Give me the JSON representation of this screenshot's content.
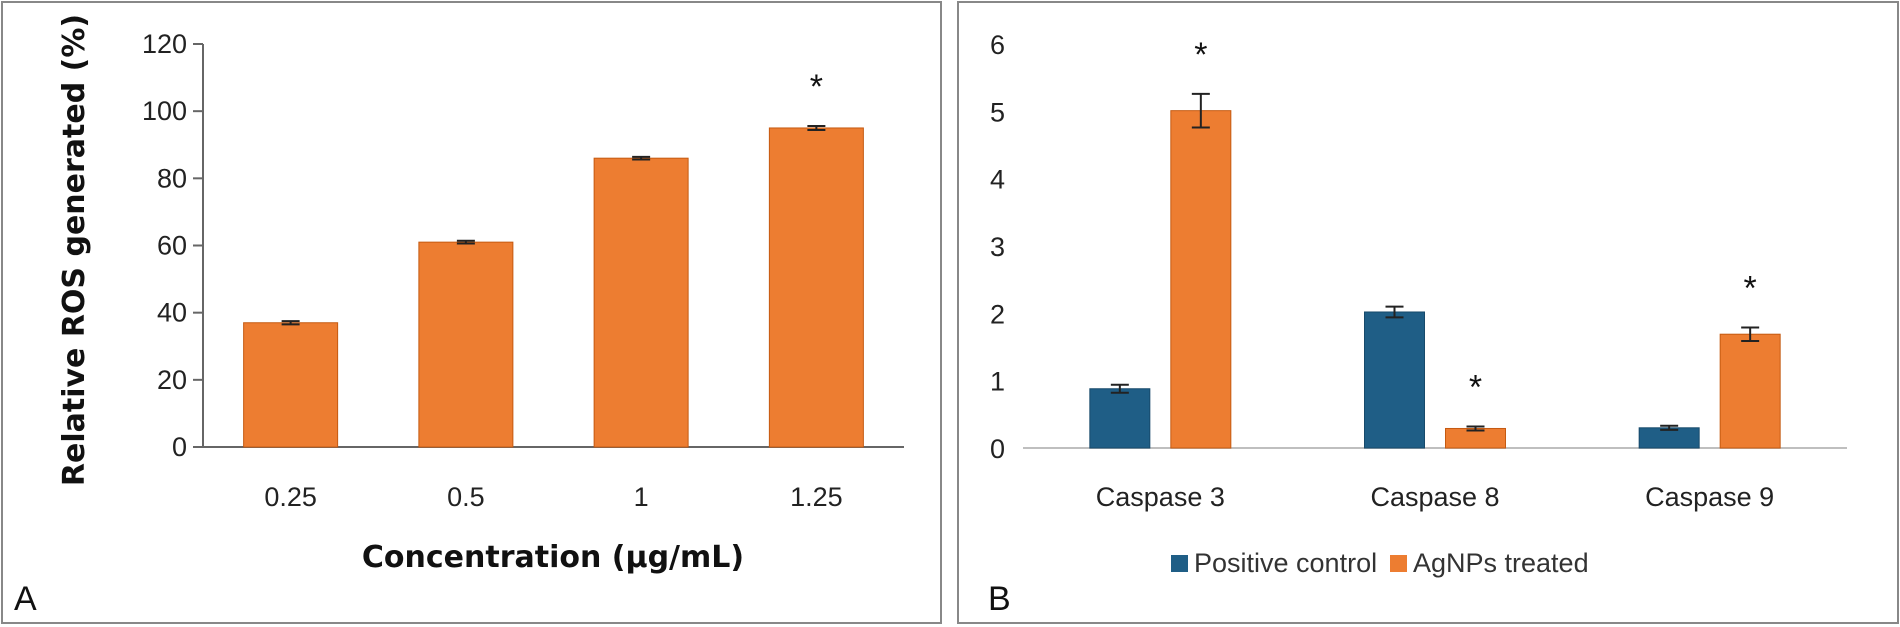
{
  "chart_data": [
    {
      "panel_label": "A",
      "type": "bar",
      "categories": [
        "0.25",
        "0.5",
        "1",
        "1.25"
      ],
      "values": [
        37,
        61,
        86,
        95
      ],
      "errors": [
        0.5,
        0.4,
        0.4,
        0.6
      ],
      "significance": [
        "",
        "",
        "",
        "*"
      ],
      "xlabel": "Concentration (µg/mL)",
      "ylabel": "Relative ROS generated (%)",
      "ylim": [
        0,
        120
      ],
      "yticks": [
        "0",
        "20",
        "40",
        "60",
        "80",
        "100",
        "120"
      ],
      "grid": false,
      "color": "#ED7D31"
    },
    {
      "panel_label": "B",
      "type": "bar",
      "categories": [
        "Caspase 3",
        "Caspase 8",
        "Caspase 9"
      ],
      "series": [
        {
          "name": "Positive control",
          "values": [
            0.88,
            2.02,
            0.3
          ],
          "errors": [
            0.06,
            0.08,
            0.03
          ],
          "significance": [
            "",
            "",
            ""
          ],
          "color": "#1F5E86"
        },
        {
          "name": "AgNPs treated",
          "values": [
            5.01,
            0.29,
            1.69
          ],
          "errors": [
            0.25,
            0.03,
            0.1
          ],
          "significance": [
            "*",
            "*",
            "*"
          ],
          "color": "#ED7D31"
        }
      ],
      "ylim": [
        0,
        6
      ],
      "yticks": [
        "0",
        "1",
        "2",
        "3",
        "4",
        "5",
        "6"
      ],
      "grid": false,
      "legend_position": "bottom"
    }
  ]
}
